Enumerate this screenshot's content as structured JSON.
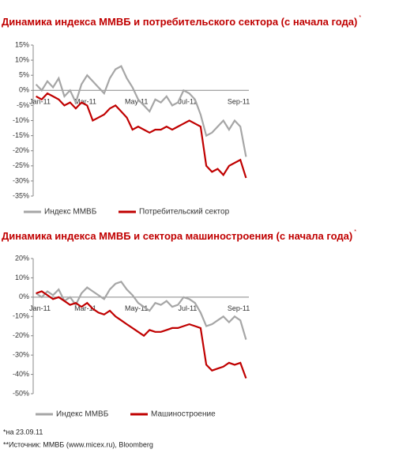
{
  "chart_data": [
    {
      "type": "line",
      "title": "Динамика индекса ММВБ и  потребительского сектора (с начала года)",
      "title_note": "*",
      "categories": [
        "Jan-11",
        null,
        null,
        null,
        null,
        null,
        null,
        null,
        "Mar-11",
        null,
        null,
        null,
        null,
        null,
        null,
        null,
        null,
        "May-11",
        null,
        null,
        null,
        null,
        null,
        null,
        null,
        null,
        "Jul-11",
        null,
        null,
        null,
        null,
        null,
        null,
        null,
        null,
        "Sep-11",
        null,
        null
      ],
      "series": [
        {
          "name": "Индекс ММВБ",
          "color": "#a6a6a6",
          "values": [
            2,
            0,
            3,
            1,
            4,
            -2,
            0,
            -4,
            2,
            5,
            3,
            1,
            -1,
            4,
            7,
            8,
            4,
            1,
            -3,
            -5,
            -7,
            -3,
            -4,
            -2,
            -5,
            -4,
            0,
            -1,
            -3,
            -8,
            -15,
            -14,
            -12,
            -10,
            -13,
            -10,
            -12,
            -22
          ]
        },
        {
          "name": "Потребительский сектор",
          "color": "#c00000",
          "values": [
            -2,
            -3,
            -1,
            -2,
            -3,
            -5,
            -4,
            -6,
            -4,
            -5,
            -10,
            -9,
            -8,
            -6,
            -5,
            -7,
            -9,
            -13,
            -12,
            -13,
            -14,
            -13,
            -13,
            -12,
            -13,
            -12,
            -11,
            -10,
            -11,
            -12,
            -25,
            -27,
            -26,
            -28,
            -25,
            -24,
            -23,
            -29
          ]
        }
      ],
      "ylim": [
        -35,
        15
      ],
      "yticks": [
        {
          "value": 15,
          "label": "15%"
        },
        {
          "value": 10,
          "label": "10%"
        },
        {
          "value": 5,
          "label": "5%"
        },
        {
          "value": 0,
          "label": "0%"
        },
        {
          "value": -5,
          "label": "-5%"
        },
        {
          "value": -10,
          "label": "-10%"
        },
        {
          "value": -15,
          "label": "-15%"
        },
        {
          "value": -20,
          "label": "-20%"
        },
        {
          "value": -25,
          "label": "-25%"
        },
        {
          "value": -30,
          "label": "-30%"
        },
        {
          "value": -35,
          "label": "-35%"
        }
      ]
    },
    {
      "type": "line",
      "title": "Динамика индекса ММВБ и сектора машиностроения (с начала года)",
      "title_note": "*",
      "categories": [
        "Jan-11",
        null,
        null,
        null,
        null,
        null,
        null,
        null,
        "Mar-11",
        null,
        null,
        null,
        null,
        null,
        null,
        null,
        null,
        "May-11",
        null,
        null,
        null,
        null,
        null,
        null,
        null,
        null,
        "Jul-11",
        null,
        null,
        null,
        null,
        null,
        null,
        null,
        null,
        "Sep-11",
        null,
        null
      ],
      "series": [
        {
          "name": "Индекс ММВБ",
          "color": "#a6a6a6",
          "values": [
            2,
            0,
            3,
            1,
            4,
            -2,
            0,
            -4,
            2,
            5,
            3,
            1,
            -1,
            4,
            7,
            8,
            4,
            1,
            -3,
            -5,
            -7,
            -3,
            -4,
            -2,
            -5,
            -4,
            0,
            -1,
            -3,
            -8,
            -15,
            -14,
            -12,
            -10,
            -13,
            -10,
            -12,
            -22
          ]
        },
        {
          "name": "Машиностроение",
          "color": "#c00000",
          "values": [
            2,
            3,
            1,
            -1,
            0,
            -2,
            -4,
            -3,
            -5,
            -3,
            -6,
            -8,
            -9,
            -7,
            -10,
            -12,
            -14,
            -16,
            -18,
            -20,
            -17,
            -18,
            -18,
            -17,
            -16,
            -16,
            -15,
            -14,
            -15,
            -16,
            -35,
            -38,
            -37,
            -36,
            -34,
            -35,
            -34,
            -42
          ]
        }
      ],
      "ylim": [
        -50,
        20
      ],
      "yticks": [
        {
          "value": 20,
          "label": "20%"
        },
        {
          "value": 10,
          "label": "10%"
        },
        {
          "value": 0,
          "label": "0%"
        },
        {
          "value": -10,
          "label": "-10%"
        },
        {
          "value": -20,
          "label": "-20%"
        },
        {
          "value": -30,
          "label": "-30%"
        },
        {
          "value": -40,
          "label": "-40%"
        },
        {
          "value": -50,
          "label": "-50%"
        }
      ]
    }
  ],
  "footnotes": [
    "*на 23.09.11",
    "**Источник: ММВБ (www.micex.ru), Bloomberg"
  ]
}
